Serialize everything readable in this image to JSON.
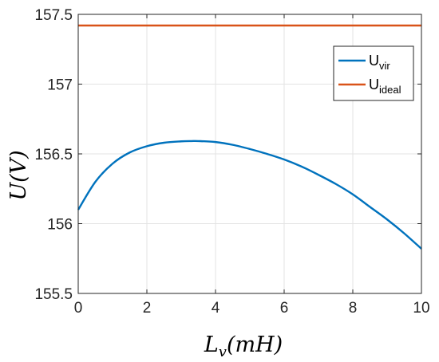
{
  "chart_data": {
    "type": "line",
    "xlabel": {
      "base": "L",
      "sub": "v",
      "rest": "(mH)"
    },
    "ylabel": "U(V)",
    "xlim": [
      0,
      10
    ],
    "ylim": [
      155.5,
      157.5
    ],
    "xticks": [
      0,
      2,
      4,
      6,
      8,
      10
    ],
    "yticks": [
      155.5,
      156,
      156.5,
      157,
      157.5
    ],
    "xtick_labels": [
      "0",
      "2",
      "4",
      "6",
      "8",
      "10"
    ],
    "ytick_labels": [
      "155.5",
      "156",
      "156.5",
      "157",
      "157.5"
    ],
    "grid": true,
    "legend_position": "top-right",
    "series": [
      {
        "name": "U_vir",
        "legend_base": "U",
        "legend_sub": "vir",
        "color": "#0072BD",
        "x": [
          0,
          0.5,
          1,
          1.5,
          2,
          2.5,
          3,
          3.3,
          3.5,
          4,
          4.5,
          5,
          5.5,
          6,
          6.5,
          7,
          7.5,
          8,
          8.5,
          9,
          9.5,
          10
        ],
        "y": [
          156.1,
          156.3,
          156.43,
          156.51,
          156.555,
          156.58,
          156.59,
          156.592,
          156.592,
          156.585,
          156.565,
          156.535,
          156.5,
          156.46,
          156.41,
          156.35,
          156.285,
          156.21,
          156.12,
          156.03,
          155.93,
          155.82
        ]
      },
      {
        "name": "U_ideal",
        "legend_base": "U",
        "legend_sub": "ideal",
        "color": "#D95319",
        "x": [
          0,
          10
        ],
        "y": [
          157.42,
          157.42
        ]
      }
    ]
  }
}
